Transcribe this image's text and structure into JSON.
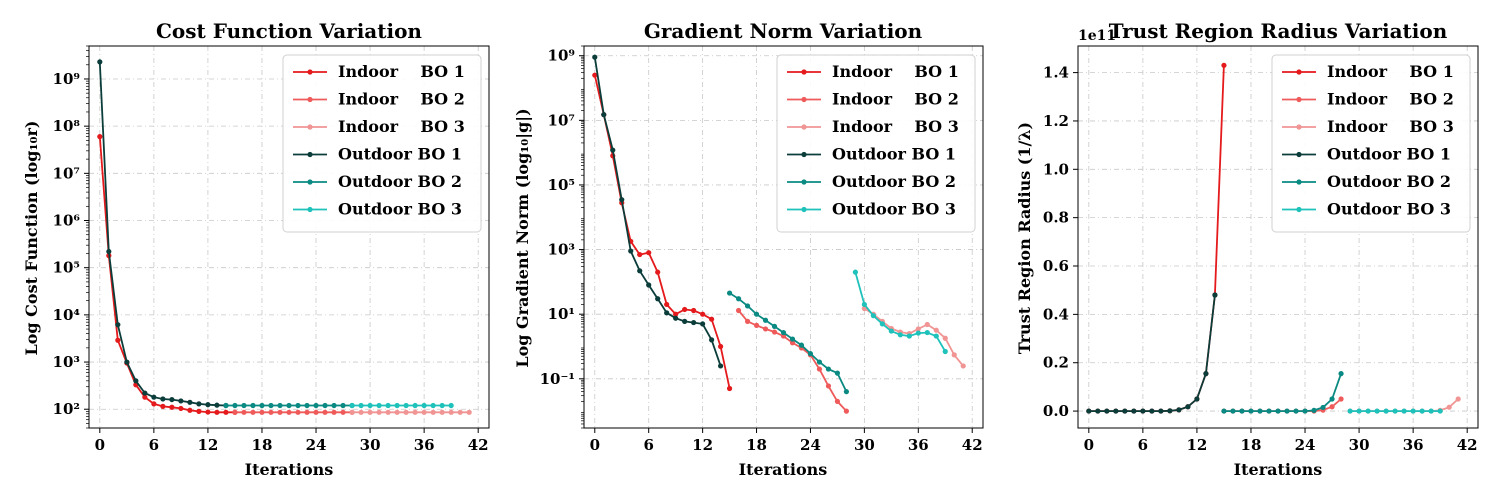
{
  "colors": {
    "Indoor BO 1": "#e41a1c",
    "Indoor BO 2": "#ef5b5b",
    "Indoor BO 3": "#f09494",
    "Outdoor BO 1": "#0b3d3a",
    "Outdoor BO 2": "#0a8a82",
    "Outdoor BO 3": "#1ec2bb"
  },
  "legend": {
    "placement": "top-right",
    "entries": [
      {
        "series": "Indoor BO 1",
        "label": "Indoor    BO 1"
      },
      {
        "series": "Indoor BO 2",
        "label": "Indoor    BO 2"
      },
      {
        "series": "Indoor BO 3",
        "label": "Indoor    BO 3"
      },
      {
        "series": "Outdoor BO 1",
        "label": "Outdoor BO 1"
      },
      {
        "series": "Outdoor BO 2",
        "label": "Outdoor BO 2"
      },
      {
        "series": "Outdoor BO 3",
        "label": "Outdoor BO 3"
      }
    ]
  },
  "chart_data": [
    {
      "type": "line",
      "title": "Cost Function Variation",
      "xlabel": "Iterations",
      "ylabel": "Log Cost Function (log₁₀r)",
      "yscale": "log",
      "xlim": [
        -1.2,
        43.2
      ],
      "ylim": [
        40,
        5000000000.0
      ],
      "xticks": [
        0,
        6,
        12,
        18,
        24,
        30,
        36,
        42
      ],
      "ytick_labels": [
        "10²",
        "10³",
        "10⁴",
        "10⁵",
        "10⁶",
        "10⁷",
        "10⁸",
        "10⁹"
      ],
      "ytick_values": [
        100,
        1000,
        10000,
        100000,
        1000000,
        10000000,
        100000000,
        1000000000
      ],
      "grid": true,
      "series": [
        {
          "name": "Indoor BO 1",
          "x": [
            0,
            1,
            2,
            3,
            4,
            5,
            6,
            7,
            8,
            9,
            10,
            11,
            12,
            13,
            14,
            15
          ],
          "y": [
            60000000.0,
            180000.0,
            2900,
            950,
            330,
            180,
            130,
            115,
            110,
            104,
            95,
            90,
            87,
            86,
            86,
            86
          ]
        },
        {
          "name": "Indoor BO 2",
          "x": [
            15,
            16,
            17,
            18,
            19,
            20,
            21,
            22,
            23,
            24,
            25,
            26,
            27,
            28
          ],
          "y": [
            86,
            86,
            86,
            86,
            86,
            86,
            86,
            86,
            86,
            86,
            86,
            86,
            86,
            86
          ]
        },
        {
          "name": "Indoor BO 3",
          "x": [
            28,
            29,
            30,
            31,
            32,
            33,
            34,
            35,
            36,
            37,
            38,
            39,
            40,
            41
          ],
          "y": [
            86,
            86,
            86,
            86,
            86,
            86,
            86,
            86,
            86,
            86,
            86,
            86,
            86,
            86
          ]
        },
        {
          "name": "Outdoor BO 1",
          "x": [
            0,
            1,
            2,
            3,
            4,
            5,
            6,
            7,
            8,
            9,
            10,
            11,
            12,
            13,
            14
          ],
          "y": [
            2300000000.0,
            220000.0,
            6200,
            1000,
            400,
            220,
            180,
            165,
            160,
            150,
            140,
            130,
            125,
            122,
            120
          ]
        },
        {
          "name": "Outdoor BO 2",
          "x": [
            14,
            15,
            16,
            17,
            18,
            19,
            20,
            21,
            22,
            23,
            24,
            25,
            26,
            27,
            28
          ],
          "y": [
            120,
            120,
            120,
            120,
            120,
            120,
            120,
            120,
            120,
            120,
            120,
            120,
            120,
            120,
            120
          ]
        },
        {
          "name": "Outdoor BO 3",
          "x": [
            28,
            29,
            30,
            31,
            32,
            33,
            34,
            35,
            36,
            37,
            38,
            39
          ],
          "y": [
            120,
            120,
            120,
            120,
            120,
            120,
            120,
            120,
            120,
            120,
            120,
            120
          ]
        }
      ]
    },
    {
      "type": "line",
      "title": "Gradient Norm Variation",
      "xlabel": "Iterations",
      "ylabel": "Log Gradient Norm (log₁₀|g|)",
      "yscale": "log",
      "xlim": [
        -1.2,
        43.2
      ],
      "ylim": [
        0.003,
        2000000000.0
      ],
      "xticks": [
        0,
        6,
        12,
        18,
        24,
        30,
        36,
        42
      ],
      "ytick_labels": [
        "10⁻¹",
        "10¹",
        "10³",
        "10⁵",
        "10⁷",
        "10⁹"
      ],
      "ytick_values": [
        0.1,
        10,
        1000,
        100000,
        10000000,
        1000000000
      ],
      "grid": true,
      "series": [
        {
          "name": "Indoor BO 1",
          "x": [
            0,
            1,
            2,
            3,
            4,
            5,
            6,
            7,
            8,
            9,
            10,
            11,
            12,
            13,
            14,
            15
          ],
          "y": [
            250000000.0,
            15000000.0,
            800000.0,
            28000.0,
            1800,
            700,
            800,
            200,
            20,
            10,
            14,
            13,
            10,
            7,
            1,
            0.05
          ]
        },
        {
          "name": "Indoor BO 2",
          "x": [
            16,
            17,
            18,
            19,
            20,
            21,
            22,
            23,
            24,
            25,
            26,
            27,
            28
          ],
          "y": [
            13,
            6,
            4.5,
            3.5,
            2.8,
            2.1,
            1.3,
            0.9,
            0.55,
            0.2,
            0.06,
            0.02,
            0.01
          ]
        },
        {
          "name": "Indoor BO 3",
          "x": [
            30,
            31,
            32,
            33,
            34,
            35,
            36,
            37,
            38,
            39,
            40,
            41
          ],
          "y": [
            15,
            10,
            6,
            3.6,
            2.8,
            2.5,
            3.5,
            4.8,
            3.2,
            1.8,
            0.55,
            0.25
          ]
        },
        {
          "name": "Outdoor BO 1",
          "x": [
            0,
            1,
            2,
            3,
            4,
            5,
            6,
            7,
            8,
            9,
            10,
            11,
            12,
            13,
            14
          ],
          "y": [
            900000000.0,
            15000000.0,
            1200000.0,
            35000.0,
            900,
            220,
            80,
            30,
            11,
            7.5,
            6,
            5.5,
            5,
            1.6,
            0.25
          ]
        },
        {
          "name": "Outdoor BO 2",
          "x": [
            15,
            16,
            17,
            18,
            19,
            20,
            21,
            22,
            23,
            24,
            25,
            26,
            27,
            28
          ],
          "y": [
            45,
            30,
            18,
            10,
            6.5,
            4.2,
            2.7,
            1.7,
            1.1,
            0.6,
            0.33,
            0.2,
            0.15,
            0.04
          ]
        },
        {
          "name": "Outdoor BO 3",
          "x": [
            29,
            30,
            31,
            32,
            33,
            34,
            35,
            36,
            37,
            38,
            39
          ],
          "y": [
            200,
            20,
            9,
            5,
            3,
            2.3,
            2.1,
            2.6,
            2.7,
            2.1,
            0.7
          ]
        }
      ]
    },
    {
      "type": "line",
      "title": "Trust Region Radius Variation",
      "xlabel": "Iterations",
      "ylabel": "Trust Region Radius (1/λ)",
      "yscale": "linear",
      "offset_label": "1e11",
      "xlim": [
        -1.2,
        43.2
      ],
      "ylim": [
        -0.07,
        1.51
      ],
      "xticks": [
        0,
        6,
        12,
        18,
        24,
        30,
        36,
        42
      ],
      "ytick_labels": [
        "0.0",
        "0.2",
        "0.4",
        "0.6",
        "0.8",
        "1.0",
        "1.2",
        "1.4"
      ],
      "ytick_values": [
        0,
        0.2,
        0.4,
        0.6,
        0.8,
        1.0,
        1.2,
        1.4
      ],
      "grid": true,
      "series": [
        {
          "name": "Indoor BO 1",
          "x": [
            0,
            1,
            2,
            3,
            4,
            5,
            6,
            7,
            8,
            9,
            10,
            11,
            12,
            13,
            14,
            15
          ],
          "y": [
            0,
            0,
            0,
            0,
            0,
            0,
            0,
            0,
            0,
            0.001,
            0.005,
            0.018,
            0.05,
            0.155,
            0.48,
            1.43
          ]
        },
        {
          "name": "Indoor BO 2",
          "x": [
            15,
            16,
            17,
            18,
            19,
            20,
            21,
            22,
            23,
            24,
            25,
            26,
            27,
            28
          ],
          "y": [
            0,
            0,
            0,
            0,
            0,
            0,
            0,
            0,
            0,
            0,
            0,
            0.004,
            0.018,
            0.05
          ]
        },
        {
          "name": "Indoor BO 3",
          "x": [
            29,
            30,
            31,
            32,
            33,
            34,
            35,
            36,
            37,
            38,
            39,
            40,
            41
          ],
          "y": [
            0,
            0,
            0,
            0,
            0,
            0,
            0,
            0,
            0,
            0,
            0.003,
            0.016,
            0.05
          ]
        },
        {
          "name": "Outdoor BO 1",
          "x": [
            0,
            1,
            2,
            3,
            4,
            5,
            6,
            7,
            8,
            9,
            10,
            11,
            12,
            13,
            14
          ],
          "y": [
            0,
            0,
            0,
            0,
            0,
            0,
            0,
            0,
            0,
            0.001,
            0.005,
            0.018,
            0.05,
            0.155,
            0.48
          ]
        },
        {
          "name": "Outdoor BO 2",
          "x": [
            15,
            16,
            17,
            18,
            19,
            20,
            21,
            22,
            23,
            24,
            25,
            26,
            27,
            28
          ],
          "y": [
            0,
            0,
            0,
            0,
            0,
            0,
            0,
            0,
            0,
            0,
            0.003,
            0.015,
            0.05,
            0.155
          ]
        },
        {
          "name": "Outdoor BO 3",
          "x": [
            29,
            30,
            31,
            32,
            33,
            34,
            35,
            36,
            37,
            38,
            39
          ],
          "y": [
            0,
            0,
            0,
            0,
            0,
            0,
            0,
            0,
            0,
            0,
            0
          ]
        }
      ]
    }
  ]
}
